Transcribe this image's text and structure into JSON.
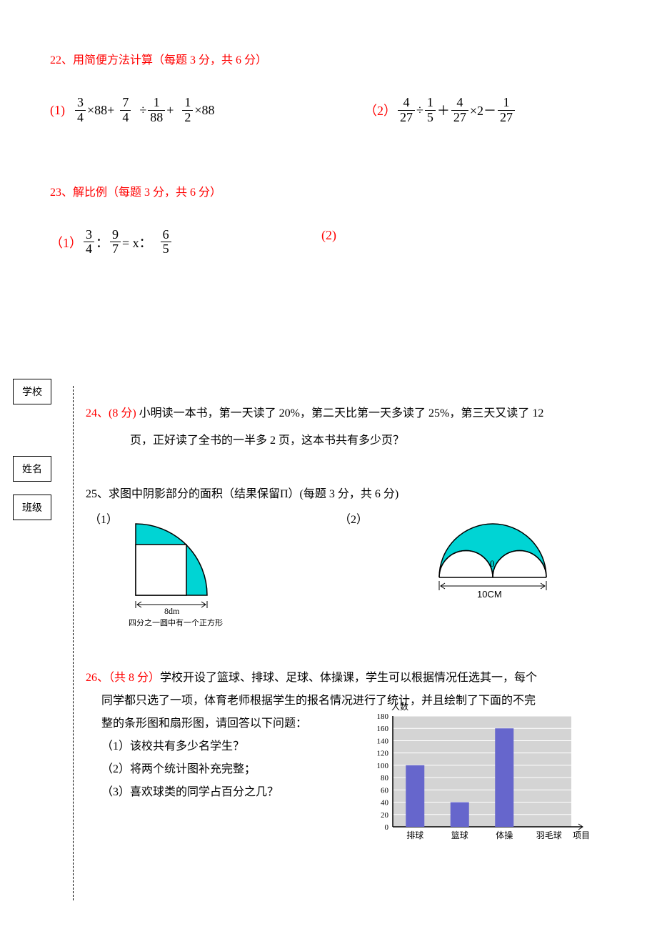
{
  "q22": {
    "header": "22、用简便方法计算（每题 3 分，共 6 分）",
    "p1_label": "(1)",
    "p1_f1_num": "3",
    "p1_f1_den": "4",
    "p1_op1": "×88+",
    "p1_f2_num": "7",
    "p1_f2_den": "4",
    "p1_op2": "÷",
    "p1_f3_num": "1",
    "p1_f3_den": "88",
    "p1_op3": "+",
    "p1_f4_num": "1",
    "p1_f4_den": "2",
    "p1_op4": "×88",
    "p2_label": "（2）",
    "p2_f1_num": "4",
    "p2_f1_den": "27",
    "p2_op1": "÷",
    "p2_f2_num": "1",
    "p2_f2_den": "5",
    "p2_op2": "＋",
    "p2_f3_num": "4",
    "p2_f3_den": "27",
    "p2_op3": "×2－",
    "p2_f4_num": "1",
    "p2_f4_den": "27"
  },
  "q23": {
    "header": "23、解比例（每题 3 分，共 6 分）",
    "p1_label": "（1）",
    "p1_f1_num": "3",
    "p1_f1_den": "4",
    "p1_colon1": "：",
    "p1_f2_num": "9",
    "p1_f2_den": "7",
    "p1_eq": " = x：",
    "p1_f3_num": "6",
    "p1_f3_den": "5",
    "p2_label": "(2)"
  },
  "sideboxes": {
    "school": "学校",
    "name": "姓名",
    "class": "班级"
  },
  "q24": {
    "line1": "24、(8 分)  小明读一本书，第一天读了 20%，第二天比第一天多读了 25%，第三天又读了 12",
    "line1_prefix": "24、(8 分)",
    "line1_text": "  小明读一本书，第一天读了 20%，第二天比第一天多读了 25%，第三天又读了 12",
    "line2": "页，正好读了全书的一半多 2 页，这本书共有多少页？"
  },
  "q25": {
    "header": "25、求图中阴影部分的面积（结果保留Π）(每题 3 分，共 6 分)",
    "fig1_label": "（1）",
    "fig2_label": "（2）",
    "fig1": {
      "dim_label": "8dm",
      "caption": "四分之一圆中有一个正方形",
      "shade_color": "#00d4d4",
      "stroke": "#000000"
    },
    "fig2": {
      "dim_label": "10CM",
      "center_label": "0",
      "shade_color": "#00d4d4",
      "stroke": "#000000"
    }
  },
  "q26": {
    "line1_prefix": "26、（共 8 分）",
    "line1_text": "学校开设了篮球、排球、足球、体操课，学生可以根据情况任选其一，每个",
    "line2": "同学都只选了一项，体育老师根据学生的报名情况进行了统计，并且绘制了下面的不完",
    "line3": "整的条形图和扇形图，请回答以下问题：",
    "sub1": "（1）该校共有多少名学生？",
    "sub2": "（2）将两个统计图补充完整；",
    "sub3": "（3）喜欢球类的同学占百分之几？",
    "chart": {
      "ylabel": "人数",
      "xlabel": "项目",
      "ymax": 180,
      "ytick_step": 20,
      "categories": [
        "排球",
        "篮球",
        "体操",
        "羽毛球"
      ],
      "values": [
        100,
        40,
        160,
        0
      ],
      "bar_color": "#6666cc",
      "plot_bg": "#d4d4d4",
      "grid_color": "#ffffff",
      "axis_color": "#000000"
    }
  }
}
